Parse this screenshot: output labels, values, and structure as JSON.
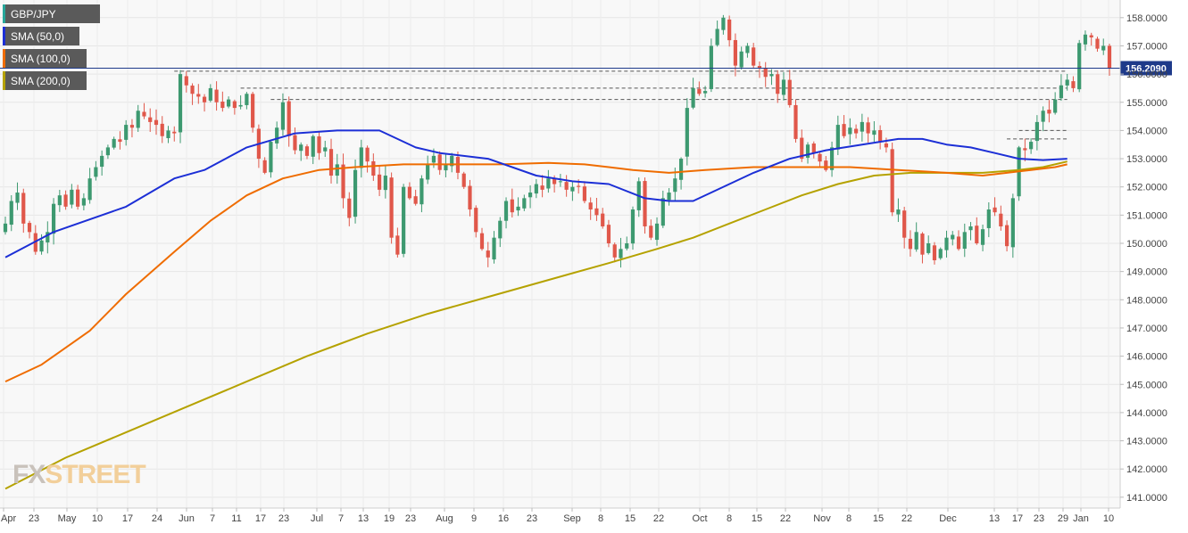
{
  "chart_data": {
    "type": "candlestick",
    "symbol": "GBP/JPY",
    "last_price": "156.2090",
    "ylim": [
      140.9,
      158.3
    ],
    "y_ticks": [
      "158.0000",
      "157.0000",
      "156.0000",
      "155.0000",
      "154.0000",
      "153.0000",
      "152.0000",
      "151.0000",
      "150.0000",
      "149.0000",
      "148.0000",
      "147.0000",
      "146.0000",
      "145.0000",
      "144.0000",
      "143.0000",
      "142.0000",
      "141.0000"
    ],
    "x_ticks": [
      "Apr",
      "23",
      "May",
      "10",
      "17",
      "24",
      "Jun",
      "7",
      "11",
      "17",
      "23",
      "Jul",
      "7",
      "13",
      "19",
      "23",
      "Aug",
      "9",
      "16",
      "23",
      "Sep",
      "8",
      "15",
      "22",
      "Oct",
      "8",
      "15",
      "22",
      "Nov",
      "8",
      "15",
      "22",
      "Dec",
      "13",
      "17",
      "23",
      "29",
      "Jan",
      "10"
    ],
    "legend": [
      {
        "label": "GBP/JPY",
        "color": "#26a69a"
      },
      {
        "label": "SMA (50,0)",
        "color": "#1c2fd6"
      },
      {
        "label": "SMA (100,0)",
        "color": "#ef6c00"
      },
      {
        "label": "SMA (200,0)",
        "color": "#b5a200"
      }
    ],
    "colors": {
      "up": "#3d9970",
      "down": "#e0574a",
      "last_line": "#1e3a8a"
    },
    "closes": [
      150.7,
      151.5,
      151.8,
      150.7,
      150.4,
      149.7,
      150.1,
      150.4,
      151.4,
      151.7,
      151.3,
      151.9,
      151.3,
      151.6,
      152.3,
      152.7,
      153.1,
      153.4,
      153.7,
      153.6,
      154.2,
      154.1,
      154.7,
      154.5,
      154.3,
      154.2,
      153.8,
      154.0,
      153.9,
      156.0,
      155.6,
      155.3,
      155.2,
      155.0,
      155.5,
      155.0,
      154.8,
      155.1,
      154.8,
      154.9,
      155.3,
      154.1,
      153.0,
      152.5,
      153.6,
      154.1,
      155.0,
      153.8,
      153.3,
      153.5,
      153.1,
      153.8,
      153.2,
      153.4,
      152.4,
      152.8,
      151.6,
      150.9,
      152.6,
      153.4,
      152.9,
      152.4,
      151.9,
      152.4,
      150.2,
      149.6,
      152.0,
      151.6,
      151.4,
      152.3,
      152.8,
      153.1,
      152.6,
      152.8,
      153.1,
      152.5,
      152.0,
      151.2,
      150.4,
      149.8,
      149.5,
      150.2,
      150.8,
      151.5,
      151.1,
      151.3,
      151.6,
      151.8,
      152.1,
      151.9,
      152.3,
      152.1,
      152.2,
      151.9,
      152.0,
      152.0,
      151.5,
      151.2,
      151.0,
      150.6,
      150.0,
      149.5,
      149.8,
      150.0,
      151.2,
      152.2,
      150.6,
      150.2,
      150.7,
      151.6,
      151.8,
      152.3,
      153.0,
      154.8,
      155.5,
      155.3,
      155.4,
      157.0,
      157.6,
      158.0,
      157.2,
      156.3,
      156.8,
      157.0,
      156.3,
      156.2,
      155.9,
      156.0,
      155.3,
      155.8,
      154.9,
      153.7,
      153.0,
      153.5,
      153.2,
      152.9,
      152.6,
      153.4,
      154.2,
      153.8,
      154.1,
      153.9,
      154.3,
      153.9,
      154.0,
      153.6,
      153.4,
      151.1,
      151.2,
      150.2,
      149.8,
      150.4,
      149.6,
      150.0,
      149.4,
      149.8,
      150.2,
      150.3,
      149.8,
      150.4,
      150.6,
      150.0,
      150.5,
      151.2,
      151.1,
      150.6,
      149.9,
      151.6,
      153.4,
      153.3,
      153.6,
      154.3,
      154.7,
      154.6,
      155.1,
      155.6,
      155.8,
      155.5,
      157.1,
      157.4,
      157.3,
      156.9,
      157.0,
      156.2
    ],
    "sma50": [
      [
        0,
        149.5
      ],
      [
        8,
        150.4
      ],
      [
        20,
        151.3
      ],
      [
        28,
        152.3
      ],
      [
        33,
        152.6
      ],
      [
        40,
        153.4
      ],
      [
        48,
        153.9
      ],
      [
        55,
        154.0
      ],
      [
        62,
        154.0
      ],
      [
        68,
        153.4
      ],
      [
        72,
        153.2
      ],
      [
        80,
        153.0
      ],
      [
        88,
        152.4
      ],
      [
        94,
        152.2
      ],
      [
        100,
        152.1
      ],
      [
        106,
        151.6
      ],
      [
        110,
        151.5
      ],
      [
        114,
        151.5
      ],
      [
        118,
        151.9
      ],
      [
        124,
        152.5
      ],
      [
        130,
        153.0
      ],
      [
        136,
        153.3
      ],
      [
        142,
        153.5
      ],
      [
        148,
        153.7
      ],
      [
        152,
        153.7
      ],
      [
        156,
        153.5
      ],
      [
        160,
        153.4
      ],
      [
        164,
        153.2
      ],
      [
        168,
        153.0
      ],
      [
        172,
        152.95
      ],
      [
        176,
        153.0
      ]
    ],
    "sma100": [
      [
        0,
        145.1
      ],
      [
        6,
        145.7
      ],
      [
        14,
        146.9
      ],
      [
        20,
        148.2
      ],
      [
        28,
        149.7
      ],
      [
        34,
        150.8
      ],
      [
        40,
        151.7
      ],
      [
        46,
        152.3
      ],
      [
        52,
        152.6
      ],
      [
        58,
        152.7
      ],
      [
        66,
        152.8
      ],
      [
        74,
        152.8
      ],
      [
        82,
        152.8
      ],
      [
        90,
        152.85
      ],
      [
        96,
        152.8
      ],
      [
        100,
        152.7
      ],
      [
        104,
        152.6
      ],
      [
        110,
        152.5
      ],
      [
        116,
        152.6
      ],
      [
        124,
        152.7
      ],
      [
        132,
        152.7
      ],
      [
        140,
        152.7
      ],
      [
        148,
        152.6
      ],
      [
        152,
        152.55
      ],
      [
        156,
        152.5
      ],
      [
        162,
        152.4
      ],
      [
        166,
        152.5
      ],
      [
        170,
        152.6
      ],
      [
        174,
        152.7
      ],
      [
        176,
        152.8
      ]
    ],
    "sma200": [
      [
        0,
        141.3
      ],
      [
        10,
        142.4
      ],
      [
        20,
        143.3
      ],
      [
        30,
        144.2
      ],
      [
        40,
        145.1
      ],
      [
        50,
        146.0
      ],
      [
        60,
        146.8
      ],
      [
        70,
        147.5
      ],
      [
        80,
        148.1
      ],
      [
        90,
        148.7
      ],
      [
        100,
        149.3
      ],
      [
        108,
        149.8
      ],
      [
        114,
        150.2
      ],
      [
        120,
        150.7
      ],
      [
        126,
        151.2
      ],
      [
        132,
        151.7
      ],
      [
        138,
        152.1
      ],
      [
        144,
        152.4
      ],
      [
        150,
        152.5
      ],
      [
        156,
        152.5
      ],
      [
        162,
        152.5
      ],
      [
        168,
        152.6
      ],
      [
        172,
        152.7
      ],
      [
        176,
        152.9
      ]
    ],
    "reference_levels": [
      {
        "value": 156.1,
        "from": 28,
        "to": 176
      },
      {
        "value": 155.5,
        "from": 39,
        "to": 176
      },
      {
        "value": 155.1,
        "from": 44,
        "to": 176
      },
      {
        "value": 154.0,
        "from": 168,
        "to": 176
      },
      {
        "value": 153.7,
        "from": 166,
        "to": 176
      }
    ]
  },
  "watermark": {
    "part1": "FX",
    "part2": "STREET"
  }
}
